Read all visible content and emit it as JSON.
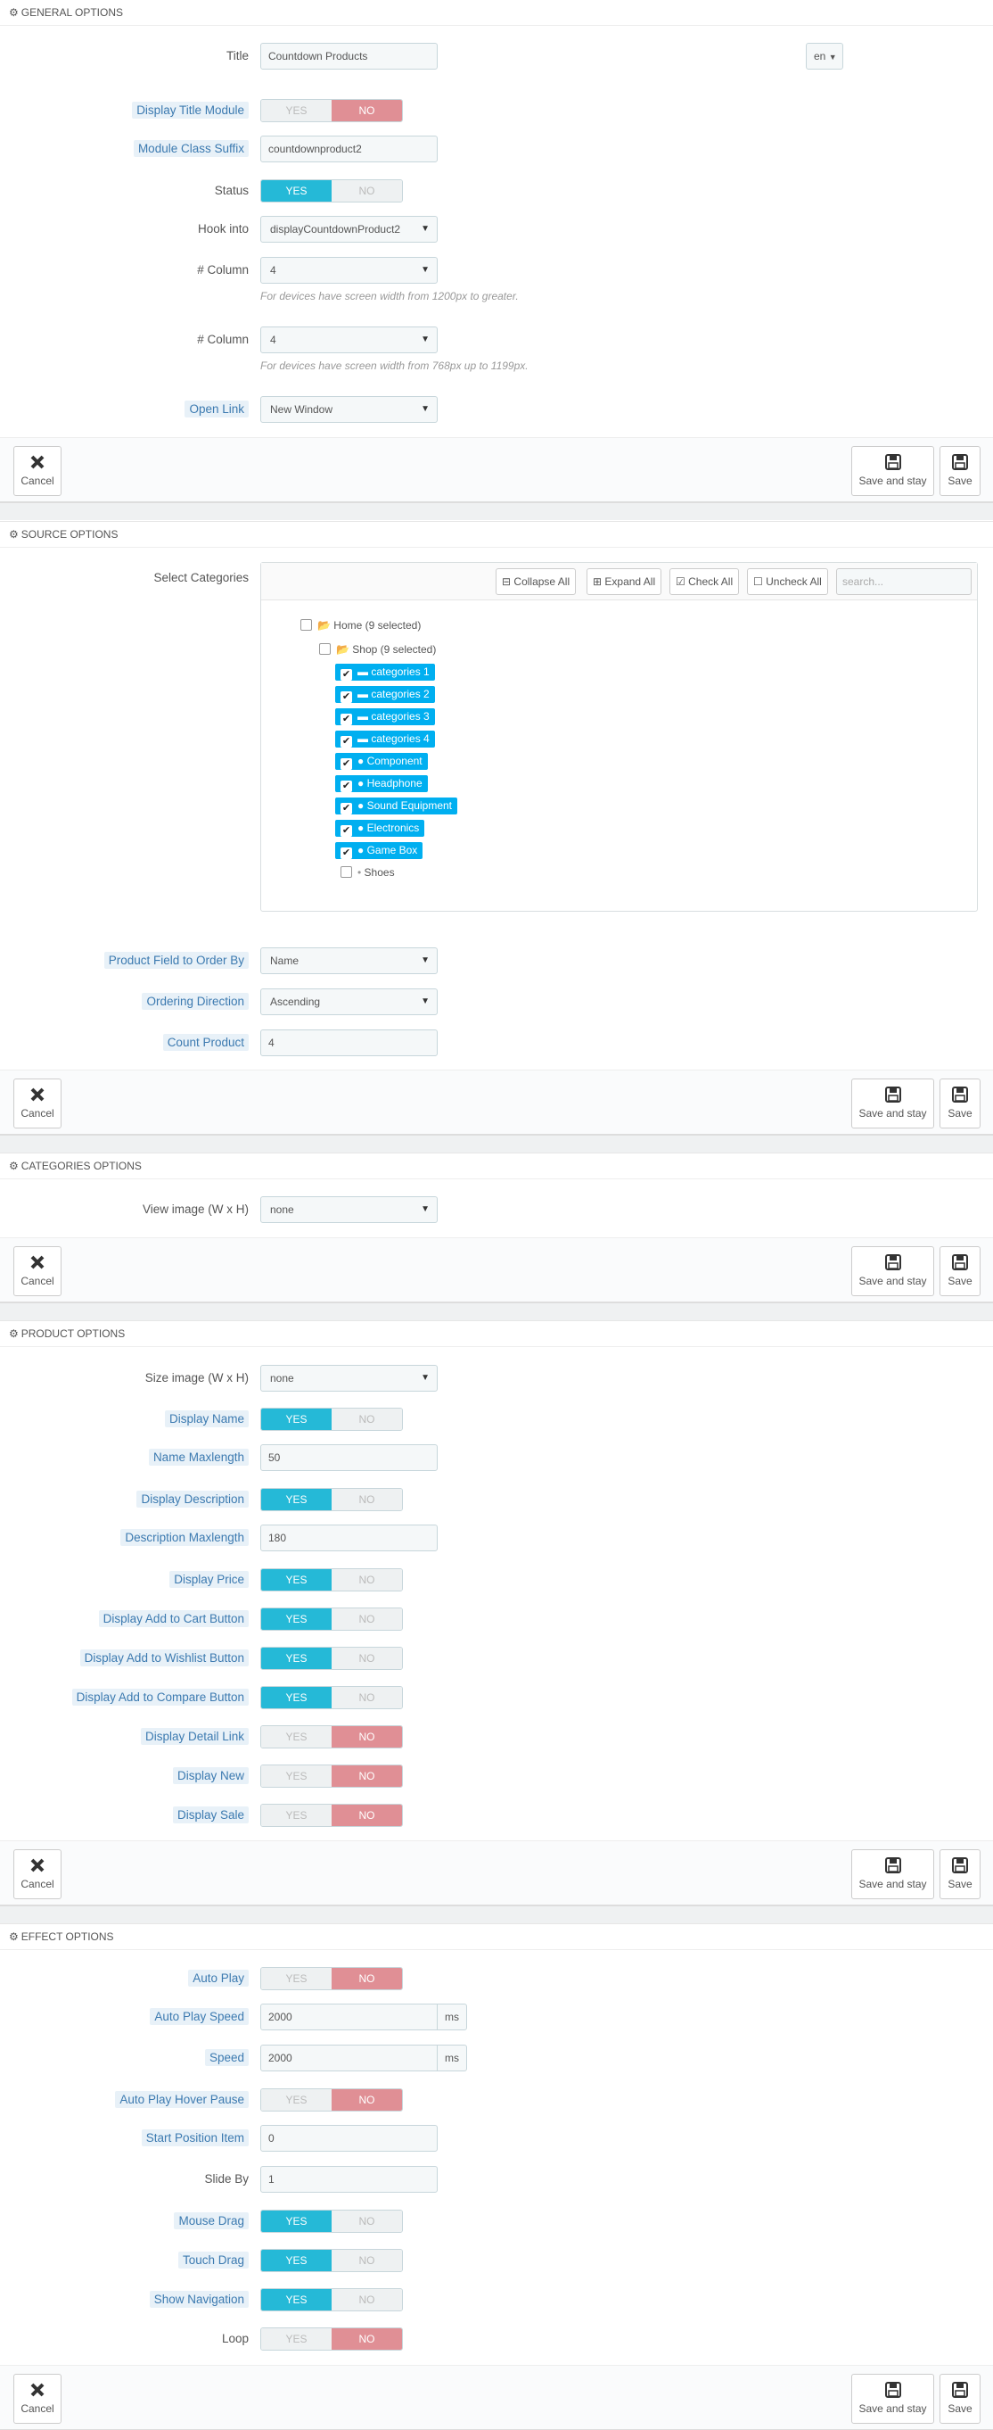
{
  "general": {
    "header": "GENERAL OPTIONS",
    "title_label": "Title",
    "title_value": "Countdown Products",
    "lang": "en",
    "display_title_label": "Display Title Module",
    "class_suffix_label": "Module Class Suffix",
    "class_suffix_value": "countdownproduct2",
    "status_label": "Status",
    "hook_label": "Hook into",
    "hook_value": "displayCountdownProduct2",
    "col1_label": "# Column",
    "col1_value": "4",
    "col1_help": "For devices have screen width from 1200px to greater.",
    "col2_label": "# Column",
    "col2_value": "4",
    "col2_help": "For devices have screen width from 768px up to 1199px.",
    "open_link_label": "Open Link",
    "open_link_value": "New Window"
  },
  "buttons": {
    "cancel": "Cancel",
    "save_stay": "Save and stay",
    "save": "Save",
    "yes": "YES",
    "no": "NO"
  },
  "source": {
    "header": "SOURCE OPTIONS",
    "select_label": "Select Categories",
    "toolbar": {
      "collapse": "Collapse All",
      "expand": "Expand All",
      "check": "Check All",
      "uncheck": "Uncheck All",
      "search_placeholder": "search..."
    },
    "home": "Home (9 selected)",
    "shop": "Shop (9 selected)",
    "items": [
      "categories 1",
      "categories 2",
      "categories 3",
      "categories 4",
      "Component",
      "Headphone",
      "Sound Equipment",
      "Electronics",
      "Game Box",
      "Shoes"
    ],
    "order_by_label": "Product Field to Order By",
    "order_by_value": "Name",
    "direction_label": "Ordering Direction",
    "direction_value": "Ascending",
    "count_label": "Count Product",
    "count_value": "4"
  },
  "categories": {
    "header": "CATEGORIES OPTIONS",
    "view_label": "View image (W x H)",
    "view_value": "none"
  },
  "product": {
    "header": "PRODUCT OPTIONS",
    "size_label": "Size image (W x H)",
    "size_value": "none",
    "display_name": "Display Name",
    "name_max_label": "Name Maxlength",
    "name_max_value": "50",
    "display_desc": "Display Description",
    "desc_max_label": "Description Maxlength",
    "desc_max_value": "180",
    "display_price": "Display Price",
    "add_cart": "Display Add to Cart Button",
    "add_wishlist": "Display Add to Wishlist Button",
    "add_compare": "Display Add to Compare Button",
    "detail_link": "Display Detail Link",
    "display_new": "Display New",
    "display_sale": "Display Sale"
  },
  "effect": {
    "header": "EFFECT OPTIONS",
    "auto_play": "Auto Play",
    "auto_speed_label": "Auto Play Speed",
    "auto_speed_value": "2000",
    "ms": "ms",
    "speed_label": "Speed",
    "speed_value": "2000",
    "hover_pause": "Auto Play Hover Pause",
    "start_label": "Start Position Item",
    "start_value": "0",
    "slide_by_label": "Slide By",
    "slide_by_value": "1",
    "mouse_drag": "Mouse Drag",
    "touch_drag": "Touch Drag",
    "show_nav": "Show Navigation",
    "loop": "Loop"
  },
  "colors": {
    "accent": "#25b9d7",
    "no_on": "#e08f95",
    "tag": "#00aff0"
  }
}
